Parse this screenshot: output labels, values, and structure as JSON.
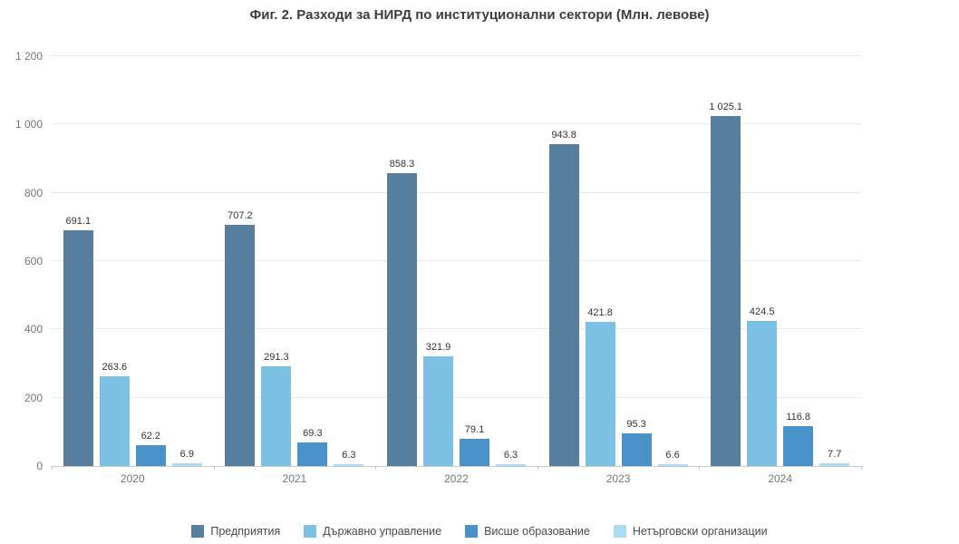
{
  "chart_data": {
    "type": "bar",
    "title": "Фиг. 2. Разходи за НИРД по институционални сектори (Млн. левове)",
    "categories": [
      "2020",
      "2021",
      "2022",
      "2023",
      "2024"
    ],
    "series": [
      {
        "name": "Предприятия",
        "color": "#577e9c",
        "values": [
          691.1,
          707.2,
          858.3,
          943.8,
          1025.1
        ],
        "labels": [
          "691.1",
          "707.2",
          "858.3",
          "943.8",
          "1 025.1"
        ]
      },
      {
        "name": "Държавно управление",
        "color": "#7cc1e4",
        "values": [
          263.6,
          291.3,
          321.9,
          421.8,
          424.5
        ],
        "labels": [
          "263.6",
          "291.3",
          "321.9",
          "421.8",
          "424.5"
        ]
      },
      {
        "name": "Висше образование",
        "color": "#4a93ca",
        "values": [
          62.2,
          69.3,
          79.1,
          95.3,
          116.8
        ],
        "labels": [
          "62.2",
          "69.3",
          "79.1",
          "95.3",
          "116.8"
        ]
      },
      {
        "name": "Нетърговски организации",
        "color": "#a9dcf2",
        "values": [
          6.9,
          6.3,
          6.3,
          6.6,
          7.7
        ],
        "labels": [
          "6.9",
          "6.3",
          "6.3",
          "6.6",
          "7.7"
        ]
      }
    ],
    "ylim": [
      0,
      1200
    ],
    "yticks": [
      {
        "value": 0,
        "label": "0"
      },
      {
        "value": 200,
        "label": "200"
      },
      {
        "value": 400,
        "label": "400"
      },
      {
        "value": 600,
        "label": "600"
      },
      {
        "value": 800,
        "label": "800"
      },
      {
        "value": 1000,
        "label": "1 000"
      },
      {
        "value": 1200,
        "label": "1 200"
      }
    ],
    "grid": true,
    "legend_position": "bottom"
  }
}
